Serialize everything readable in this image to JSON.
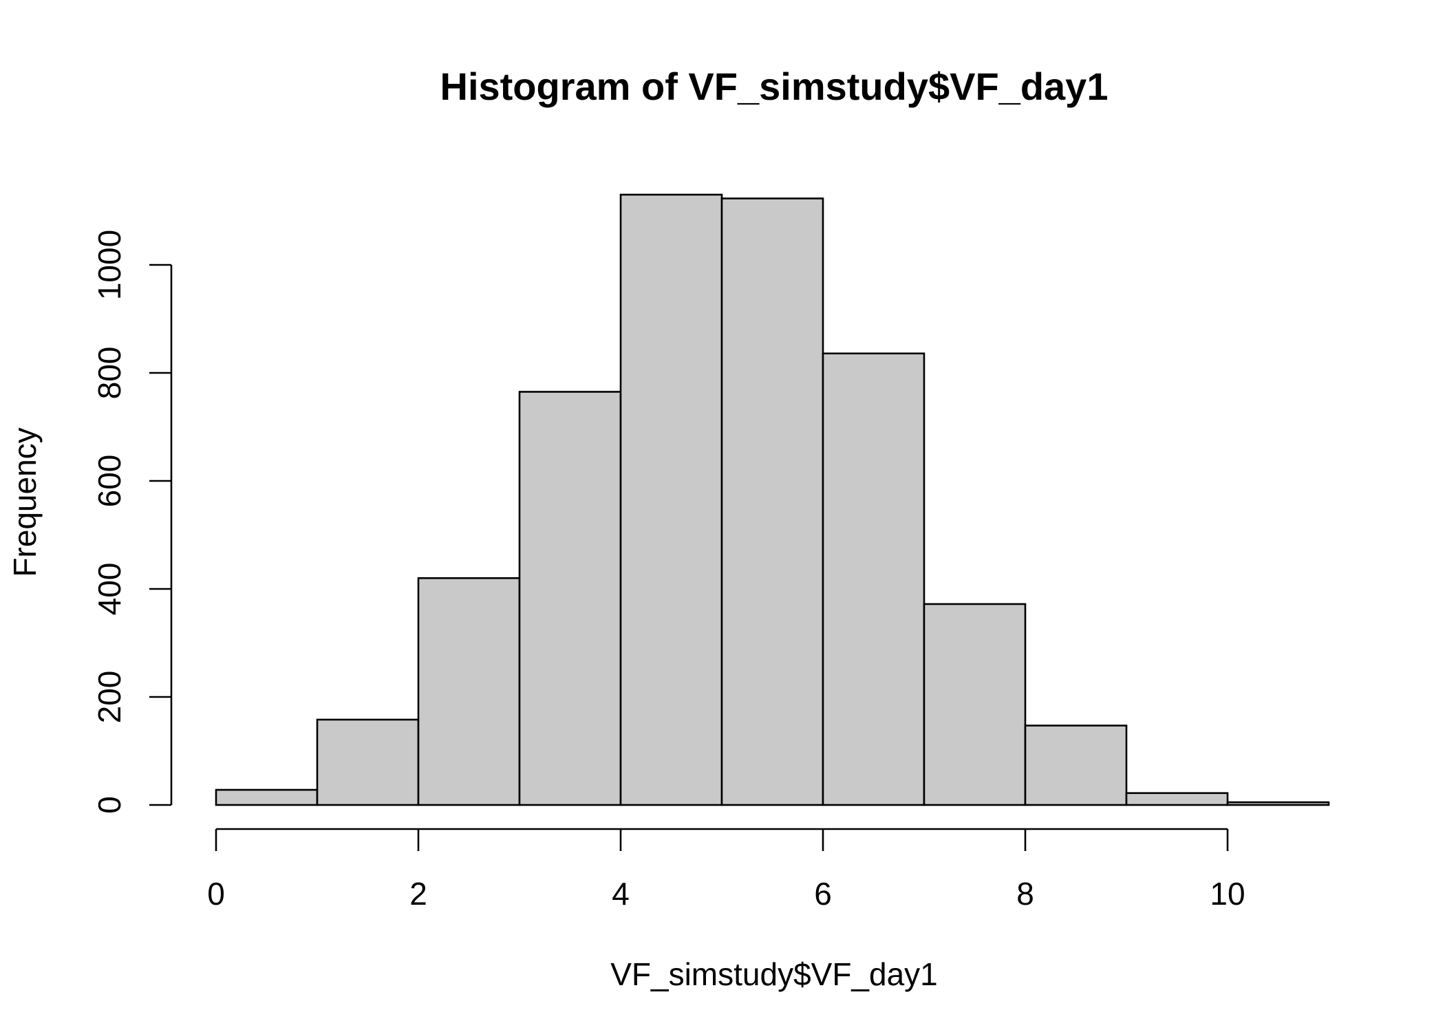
{
  "chart_data": {
    "type": "bar",
    "title": "Histogram of VF_simstudy$VF_day1",
    "xlabel": "VF_simstudy$VF_day1",
    "ylabel": "Frequency",
    "bins": [
      {
        "start": 0,
        "end": 1,
        "count": 28
      },
      {
        "start": 1,
        "end": 2,
        "count": 158
      },
      {
        "start": 2,
        "end": 3,
        "count": 420
      },
      {
        "start": 3,
        "end": 4,
        "count": 765
      },
      {
        "start": 4,
        "end": 5,
        "count": 1130
      },
      {
        "start": 5,
        "end": 6,
        "count": 1123
      },
      {
        "start": 6,
        "end": 7,
        "count": 836
      },
      {
        "start": 7,
        "end": 8,
        "count": 372
      },
      {
        "start": 8,
        "end": 9,
        "count": 147
      },
      {
        "start": 9,
        "end": 10,
        "count": 22
      },
      {
        "start": 10,
        "end": 11,
        "count": 5
      }
    ],
    "x_ticks": [
      "0",
      "2",
      "4",
      "6",
      "8",
      "10"
    ],
    "y_ticks": [
      "0",
      "200",
      "400",
      "600",
      "800",
      "1000"
    ],
    "xlim": [
      0,
      11
    ],
    "ylim": [
      0,
      1130
    ],
    "bar_color": "#c9c9c9",
    "grid": false,
    "legend": "none"
  }
}
